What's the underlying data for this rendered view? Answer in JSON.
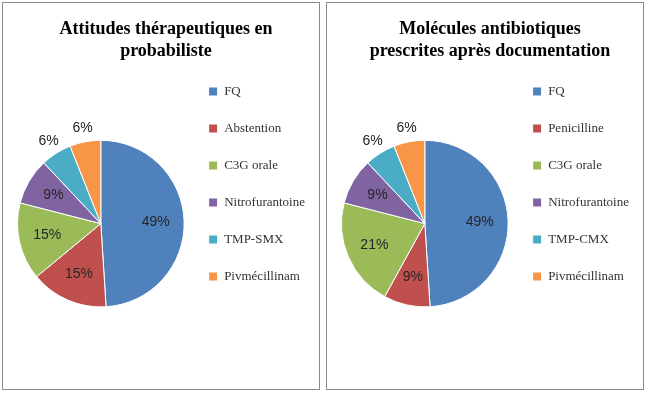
{
  "chart_data": [
    {
      "type": "pie",
      "title": "Attitudes thérapeutiques en probabiliste",
      "categories": [
        "FQ",
        "Abstention",
        "C3G orale",
        "Nitrofurantoine",
        "TMP-SMX",
        "Pivmécillinam"
      ],
      "values": [
        49,
        15,
        15,
        9,
        6,
        6
      ],
      "value_labels": [
        "49%",
        "15%",
        "15%",
        "9%",
        "6%",
        "6%"
      ],
      "colors": [
        "#4f81bd",
        "#c0504d",
        "#9bbb59",
        "#8064a2",
        "#4bacc6",
        "#f79646"
      ],
      "legend": "right",
      "data_labels": true
    },
    {
      "type": "pie",
      "title": "Molécules antibiotiques prescrites après documentation",
      "categories": [
        "FQ",
        "Penicilline",
        "C3G orale",
        "Nitrofurantoine",
        "TMP-CMX",
        "Pivmécillinam"
      ],
      "values": [
        49,
        9,
        21,
        9,
        6,
        6
      ],
      "value_labels": [
        "49%",
        "9%",
        "21%",
        "9%",
        "6%",
        "6%"
      ],
      "colors": [
        "#4f81bd",
        "#c0504d",
        "#9bbb59",
        "#8064a2",
        "#4bacc6",
        "#f79646"
      ],
      "legend": "right",
      "data_labels": true
    }
  ]
}
